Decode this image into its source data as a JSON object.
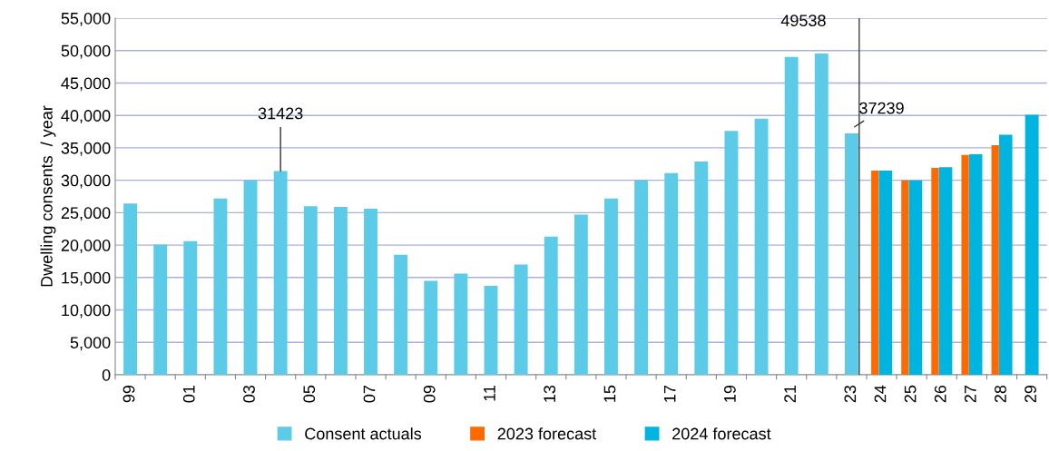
{
  "chart_data": {
    "type": "bar",
    "ylabel": "Dwelling consents  / year",
    "categories": [
      "99",
      null,
      "01",
      null,
      "03",
      null,
      "05",
      null,
      "07",
      null,
      "09",
      null,
      "11",
      null,
      "13",
      null,
      "15",
      null,
      "17",
      null,
      "19",
      null,
      "21",
      null,
      "23",
      "24",
      "25",
      "26",
      "27",
      "28",
      "29"
    ],
    "series": [
      {
        "name": "Consent actuals",
        "color": "#5ccbe8",
        "values": [
          26400,
          20100,
          20600,
          27200,
          30000,
          31423,
          26000,
          25900,
          25600,
          18500,
          14500,
          15600,
          13700,
          17000,
          21300,
          24700,
          27200,
          30000,
          31100,
          32900,
          37600,
          39500,
          49000,
          49538,
          37239,
          null,
          null,
          null,
          null,
          null,
          null
        ],
        "value_labels": [
          null,
          null,
          null,
          null,
          null,
          "31423",
          null,
          null,
          null,
          null,
          null,
          null,
          null,
          null,
          null,
          null,
          null,
          null,
          null,
          null,
          null,
          null,
          null,
          "49538",
          "37239",
          null,
          null,
          null,
          null,
          null,
          null
        ]
      },
      {
        "name": "2023 forecast",
        "color": "#ff6a00",
        "values": [
          null,
          null,
          null,
          null,
          null,
          null,
          null,
          null,
          null,
          null,
          null,
          null,
          null,
          null,
          null,
          null,
          null,
          null,
          null,
          null,
          null,
          null,
          null,
          null,
          null,
          31500,
          30000,
          31900,
          33900,
          35400,
          null
        ]
      },
      {
        "name": "2024 forecast",
        "color": "#00b4e0",
        "values": [
          null,
          null,
          null,
          null,
          null,
          null,
          null,
          null,
          null,
          null,
          null,
          null,
          null,
          null,
          null,
          null,
          null,
          null,
          null,
          null,
          null,
          null,
          null,
          null,
          null,
          31500,
          30000,
          32000,
          34000,
          37000,
          40100
        ]
      }
    ],
    "ylim": [
      0,
      55000
    ],
    "yticks": [
      0,
      {
        "value": 5000,
        "label": "5,000"
      },
      {
        "value": 10000,
        "label": "10,000"
      },
      {
        "value": 15000,
        "label": "15,000"
      },
      {
        "value": 20000,
        "label": "20,000"
      },
      {
        "value": 25000,
        "label": "25,000"
      },
      {
        "value": 30000,
        "label": "30,000"
      },
      {
        "value": 35000,
        "label": "35,000"
      },
      {
        "value": 40000,
        "label": "40,000"
      },
      {
        "value": 45000,
        "label": "45,000"
      },
      {
        "value": 50000,
        "label": "50,000"
      },
      {
        "value": 55000,
        "label": "55,000"
      }
    ],
    "ref_lines": [
      {
        "axis": "x",
        "value": "23",
        "color": "#404040"
      }
    ],
    "grid": "y",
    "legend": "bottom"
  }
}
